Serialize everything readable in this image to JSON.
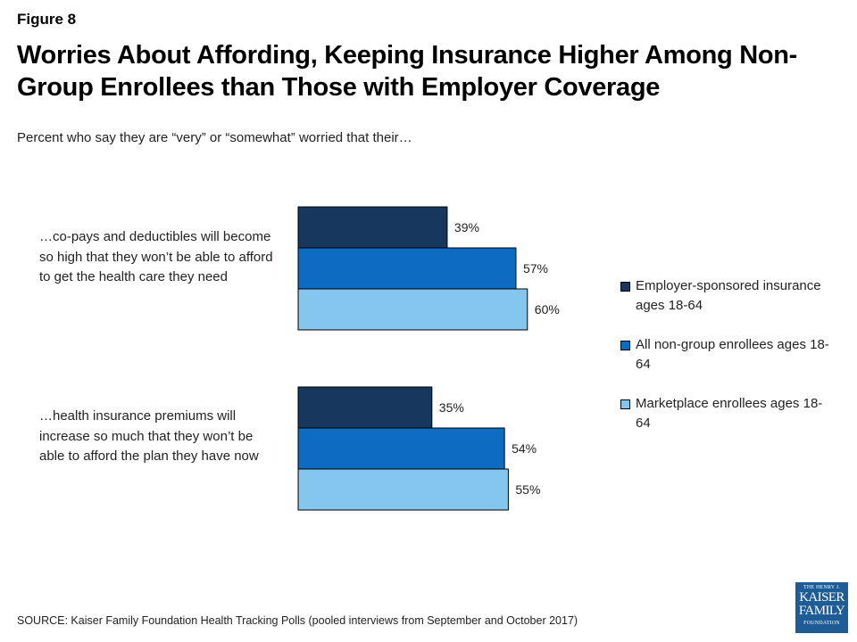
{
  "figure_label": "Figure 8",
  "title": "Worries About Affording, Keeping Insurance Higher Among Non-Group Enrollees than Those with Employer Coverage",
  "subtitle": "Percent who say they are “very” or “somewhat” worried that their…",
  "source": "SOURCE: Kaiser Family Foundation Health Tracking Polls (pooled interviews from September and October 2017)",
  "logo": {
    "line1": "THE HENRY J.",
    "line2": "KAISER",
    "line3": "FAMILY",
    "line4": "FOUNDATION"
  },
  "chart_data": {
    "type": "bar",
    "orientation": "horizontal",
    "categories": [
      "…co-pays and deductibles will become so high that they won’t be able to afford to get the health care they need",
      "…health insurance premiums will increase so much that they won’t be able to afford the plan they have now"
    ],
    "series": [
      {
        "name": "Employer-sponsored insurance ages 18-64",
        "color": "#17375e",
        "values": [
          39,
          35
        ],
        "labels": [
          "39%",
          "35%"
        ]
      },
      {
        "name": "All non-group enrollees ages 18-64",
        "color": "#0d6cc1",
        "values": [
          57,
          54
        ],
        "labels": [
          "57%",
          "54%"
        ]
      },
      {
        "name": "Marketplace enrollees ages 18-64",
        "color": "#84c6ee",
        "values": [
          60,
          55
        ],
        "labels": [
          "60%",
          "55%"
        ]
      }
    ],
    "xlim": [
      0,
      100
    ],
    "unit": "%",
    "legend_position": "right",
    "grid": false,
    "data_labels": true
  }
}
